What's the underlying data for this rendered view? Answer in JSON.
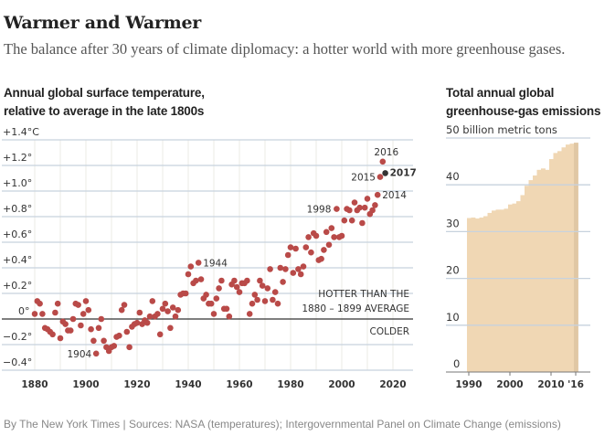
{
  "header": {
    "title": "Warmer and Warmer",
    "subtitle": "The balance after 30 years of climate diplomacy: a hotter world with more greenhouse gases."
  },
  "footer": {
    "credit": "By The New York Times | Sources: NASA (temperatures); Intergovernmental Panel on Climate Change (emissions)"
  },
  "colors": {
    "point": "#b94a48",
    "highlight_point": "#333333",
    "area": "#f0d7b4",
    "area_last": "#e0c7a4",
    "gridline": "#c7d2de",
    "vgrid": "#ebebe4",
    "zero_line": "#333333"
  },
  "chart_data": [
    {
      "type": "scatter",
      "title": "Annual global surface temperature,\nrelative to average in the late 1800s",
      "title_lines": [
        "Annual global surface temperature,",
        "relative to average in the late 1800s"
      ],
      "xlabel": "",
      "ylabel": "",
      "xlim": [
        1876,
        2027
      ],
      "ylim": [
        -0.4,
        1.4
      ],
      "grid": true,
      "x_ticks": [
        1880,
        1900,
        1920,
        1940,
        1960,
        1980,
        2000,
        2020
      ],
      "x_tick_labels": [
        "1880",
        "1900",
        "1920",
        "1940",
        "1960",
        "1980",
        "2000",
        "2020"
      ],
      "y_ticks": [
        1.4,
        1.2,
        1.0,
        0.8,
        0.6,
        0.4,
        0.2,
        0,
        -0.2,
        -0.4
      ],
      "y_tick_labels": [
        "+1.4°C",
        "+1.2°",
        "+1.0°",
        "+0.8°",
        "+0.6°",
        "+0.4°",
        "+0.2°",
        "0°",
        "−0.2°",
        "−0.4°"
      ],
      "annotations": {
        "hotter_line1": "HOTTER THAN THE",
        "hotter_line2": "1880 – 1899 AVERAGE",
        "colder": "COLDER"
      },
      "labeled_points": [
        {
          "year": 1904,
          "label": "1904",
          "bold": false
        },
        {
          "year": 1944,
          "label": "1944",
          "bold": false
        },
        {
          "year": 1998,
          "label": "1998",
          "bold": false
        },
        {
          "year": 2014,
          "label": "2014",
          "bold": false
        },
        {
          "year": 2015,
          "label": "2015",
          "bold": false
        },
        {
          "year": 2016,
          "label": "2016",
          "bold": false
        },
        {
          "year": 2017,
          "label": "2017",
          "bold": true
        }
      ],
      "highlight_year": 2017,
      "x": [
        1880,
        1881,
        1882,
        1883,
        1884,
        1885,
        1886,
        1887,
        1888,
        1889,
        1890,
        1891,
        1892,
        1893,
        1894,
        1895,
        1896,
        1897,
        1898,
        1899,
        1900,
        1901,
        1902,
        1903,
        1904,
        1905,
        1906,
        1907,
        1908,
        1909,
        1910,
        1911,
        1912,
        1913,
        1914,
        1915,
        1916,
        1917,
        1918,
        1919,
        1920,
        1921,
        1922,
        1923,
        1924,
        1925,
        1926,
        1927,
        1928,
        1929,
        1930,
        1931,
        1932,
        1933,
        1934,
        1935,
        1936,
        1937,
        1938,
        1939,
        1940,
        1941,
        1942,
        1943,
        1944,
        1945,
        1946,
        1947,
        1948,
        1949,
        1950,
        1951,
        1952,
        1953,
        1954,
        1955,
        1956,
        1957,
        1958,
        1959,
        1960,
        1961,
        1962,
        1963,
        1964,
        1965,
        1966,
        1967,
        1968,
        1969,
        1970,
        1971,
        1972,
        1973,
        1974,
        1975,
        1976,
        1977,
        1978,
        1979,
        1980,
        1981,
        1982,
        1983,
        1984,
        1985,
        1986,
        1987,
        1988,
        1989,
        1990,
        1991,
        1992,
        1993,
        1994,
        1995,
        1996,
        1997,
        1998,
        1999,
        2000,
        2001,
        2002,
        2003,
        2004,
        2005,
        2006,
        2007,
        2008,
        2009,
        2010,
        2011,
        2012,
        2013,
        2014,
        2015,
        2016,
        2017
      ],
      "values": [
        0.04,
        0.14,
        0.12,
        0.04,
        -0.07,
        -0.08,
        -0.1,
        -0.12,
        0.05,
        0.12,
        -0.15,
        -0.02,
        -0.04,
        -0.09,
        -0.09,
        0.0,
        0.12,
        0.11,
        -0.05,
        0.04,
        0.14,
        0.07,
        -0.08,
        -0.17,
        -0.27,
        -0.07,
        0.0,
        -0.17,
        -0.22,
        -0.25,
        -0.22,
        -0.21,
        -0.14,
        -0.13,
        0.07,
        0.11,
        -0.1,
        -0.22,
        -0.06,
        -0.04,
        -0.03,
        0.05,
        -0.04,
        -0.01,
        -0.03,
        0.02,
        0.14,
        0.02,
        0.04,
        -0.12,
        0.08,
        0.12,
        0.06,
        -0.07,
        0.09,
        0.02,
        0.07,
        0.19,
        0.2,
        0.2,
        0.35,
        0.41,
        0.28,
        0.3,
        0.44,
        0.31,
        0.16,
        0.19,
        0.12,
        0.12,
        0.04,
        0.16,
        0.24,
        0.3,
        0.08,
        0.08,
        0.02,
        0.27,
        0.3,
        0.25,
        0.21,
        0.28,
        0.28,
        0.3,
        0.04,
        0.12,
        0.19,
        0.15,
        0.3,
        0.26,
        0.14,
        0.24,
        0.39,
        0.15,
        0.21,
        0.12,
        0.4,
        0.29,
        0.39,
        0.5,
        0.56,
        0.36,
        0.55,
        0.39,
        0.35,
        0.41,
        0.56,
        0.64,
        0.52,
        0.67,
        0.65,
        0.46,
        0.47,
        0.54,
        0.68,
        0.58,
        0.71,
        0.64,
        0.86,
        0.64,
        0.65,
        0.77,
        0.86,
        0.85,
        0.77,
        0.91,
        0.85,
        0.87,
        0.75,
        0.87,
        0.94,
        0.82,
        0.85,
        0.89,
        0.97,
        1.11,
        1.23,
        1.14
      ]
    },
    {
      "type": "area",
      "title": "Total annual global\ngreenhouse-gas emissions",
      "title_lines": [
        "Total annual global",
        "greenhouse-gas emissions"
      ],
      "unit_label": "50 billion metric tons",
      "xlabel": "",
      "ylabel": "billion metric tons",
      "ylim": [
        0,
        50
      ],
      "grid": true,
      "y_ticks": [
        50,
        40,
        30,
        20,
        10,
        0
      ],
      "y_tick_labels": [
        "50 billion metric tons",
        "40",
        "30",
        "20",
        "10",
        "0"
      ],
      "x_ticks": [
        1990,
        2000,
        2010,
        2016
      ],
      "x_tick_labels": [
        "1990",
        "2000",
        "2010",
        "'16"
      ],
      "x": [
        1990,
        1991,
        1992,
        1993,
        1994,
        1995,
        1996,
        1997,
        1998,
        1999,
        2000,
        2001,
        2002,
        2003,
        2004,
        2005,
        2006,
        2007,
        2008,
        2009,
        2010,
        2011,
        2012,
        2013,
        2014,
        2015,
        2016
      ],
      "values": [
        32.9,
        33.0,
        32.8,
        33.0,
        33.3,
        34.0,
        34.5,
        34.7,
        34.7,
        34.9,
        35.8,
        36.0,
        36.5,
        37.8,
        39.8,
        41.0,
        42.0,
        43.2,
        43.5,
        43.2,
        45.5,
        46.8,
        47.2,
        48.0,
        48.6,
        48.8,
        49.0
      ]
    }
  ]
}
